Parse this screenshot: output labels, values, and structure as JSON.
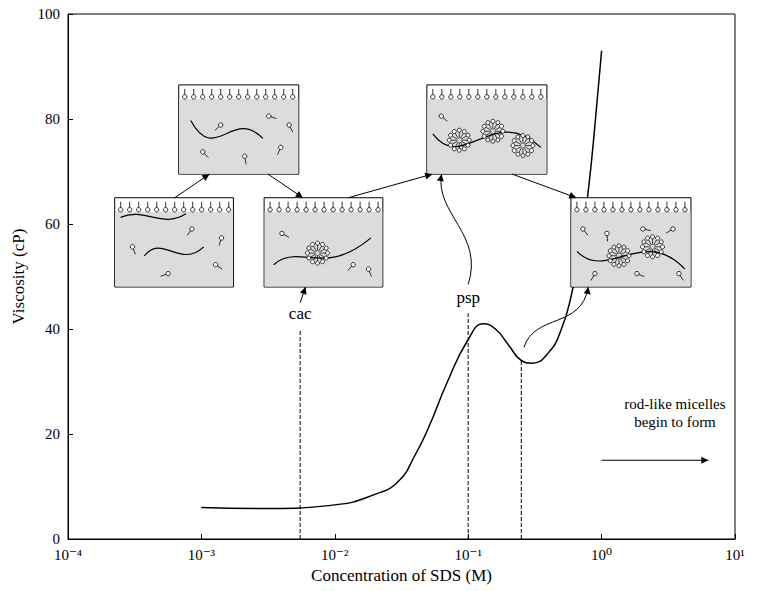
{
  "chart_data": {
    "type": "line",
    "x_label": "Concentration of SDS (M)",
    "y_label": "Viscosity (cP)",
    "log": "x",
    "grid": false,
    "color": "#000000",
    "x": [
      0.001,
      0.003,
      0.01,
      0.02,
      0.03,
      0.04,
      0.05,
      0.07,
      0.1,
      0.13,
      0.16,
      0.2,
      0.25,
      0.3,
      0.4,
      0.5,
      0.6,
      0.7,
      0.8,
      0.9,
      1.0
    ],
    "values": [
      6,
      5.8,
      6.5,
      8.5,
      11,
      16,
      21,
      30,
      38,
      41,
      40,
      37,
      34,
      33.5,
      35.5,
      40,
      47,
      56,
      67,
      80,
      93
    ],
    "xlim": [
      0.0001,
      10
    ],
    "xticks": [
      {
        "value": 0.0001,
        "label": "10⁻⁴"
      },
      {
        "value": 0.001,
        "label": "10⁻³"
      },
      {
        "value": 0.01,
        "label": "10⁻²"
      },
      {
        "value": 0.1,
        "label": "10⁻¹"
      },
      {
        "value": 1,
        "label": "10⁰"
      },
      {
        "value": 10,
        "label": "10¹"
      }
    ],
    "ylim": [
      0,
      100
    ],
    "yticks": [
      0,
      20,
      40,
      60,
      80,
      100
    ],
    "reference_lines": [
      {
        "x": 0.0055,
        "label": "cac",
        "line_style": "dashed"
      },
      {
        "x": 0.1,
        "label": "psp",
        "line_style": "dashed"
      },
      {
        "x": 0.25,
        "line_style": "dashed"
      }
    ],
    "annotations": [
      "rod-like micelles begin to form"
    ]
  }
}
